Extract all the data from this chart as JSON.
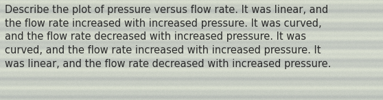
{
  "text": "Describe the plot of pressure versus flow rate. It was linear, and\nthe flow rate increased with increased pressure. It was curved,\nand the flow rate decreased with increased pressure. It was\ncurved, and the flow rate increased with increased pressure. It\nwas linear, and the flow rate decreased with increased pressure.",
  "text_color": "#2a2a2a",
  "font_size": 10.5,
  "fig_width": 5.58,
  "fig_height": 1.46,
  "dpi": 100
}
